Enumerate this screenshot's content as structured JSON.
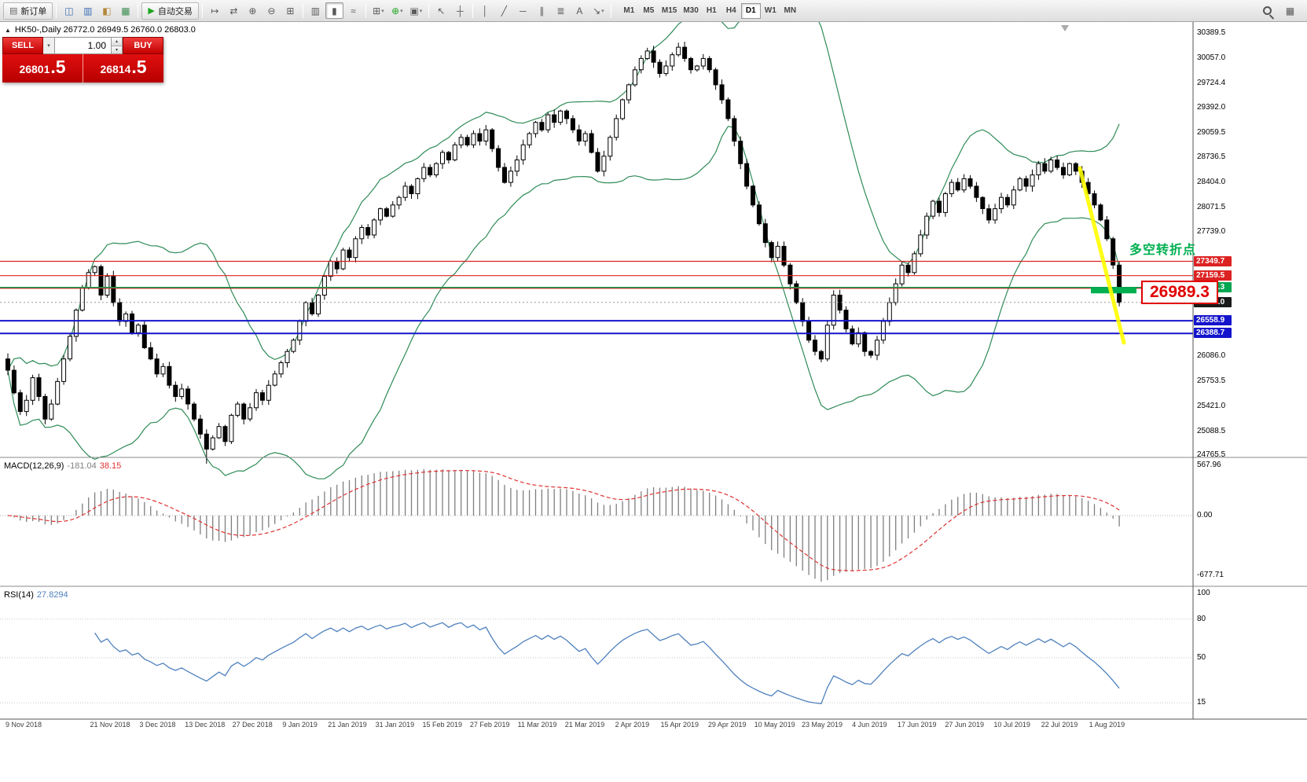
{
  "toolbar": {
    "items": [
      {
        "kind": "button",
        "name": "new-order-button",
        "glyph": "▤",
        "label": "新订单"
      },
      {
        "kind": "sep"
      },
      {
        "kind": "icon",
        "name": "market-watch-icon",
        "glyph": "◫",
        "color": "#3c6eb4"
      },
      {
        "kind": "icon",
        "name": "data-window-icon",
        "glyph": "▥",
        "color": "#3c6eb4"
      },
      {
        "kind": "icon",
        "name": "navigator-icon",
        "glyph": "◧",
        "color": "#b4883c"
      },
      {
        "kind": "icon",
        "name": "terminal-icon",
        "glyph": "▦",
        "color": "#3c8c50"
      },
      {
        "kind": "sep"
      },
      {
        "kind": "button",
        "name": "autotrading-button",
        "glyph": "▶",
        "color": "#1fa51f",
        "label": "自动交易"
      },
      {
        "kind": "sep"
      },
      {
        "kind": "icon",
        "name": "bar-shift-icon",
        "glyph": "↦"
      },
      {
        "kind": "icon",
        "name": "auto-scroll-icon",
        "glyph": "⇄"
      },
      {
        "kind": "icon",
        "name": "zoom-in-icon",
        "glyph": "⊕"
      },
      {
        "kind": "icon",
        "name": "zoom-out-icon",
        "glyph": "⊖"
      },
      {
        "kind": "icon",
        "name": "tile-windows-icon",
        "glyph": "⊞"
      },
      {
        "kind": "sep"
      },
      {
        "kind": "icon",
        "name": "bars-chart-icon",
        "glyph": "▥"
      },
      {
        "kind": "icon",
        "name": "candles-chart-icon",
        "glyph": "▮",
        "active": true
      },
      {
        "kind": "icon",
        "name": "line-chart-icon",
        "glyph": "≈"
      },
      {
        "kind": "sep"
      },
      {
        "kind": "icon",
        "name": "new-chart-icon",
        "glyph": "⊞",
        "caret": true
      },
      {
        "kind": "icon",
        "name": "indicators-icon",
        "glyph": "⊕",
        "color": "#1fa51f",
        "caret": true
      },
      {
        "kind": "icon",
        "name": "chart-template-icon",
        "glyph": "▣",
        "caret": true
      },
      {
        "kind": "sep"
      },
      {
        "kind": "icon",
        "name": "cursor-icon",
        "glyph": "↖"
      },
      {
        "kind": "icon",
        "name": "crosshair-icon",
        "glyph": "┼"
      },
      {
        "kind": "sep"
      },
      {
        "kind": "icon",
        "name": "vertical-line-icon",
        "glyph": "│"
      },
      {
        "kind": "icon",
        "name": "trendline-icon",
        "glyph": "╱"
      },
      {
        "kind": "icon",
        "name": "horizontal-line-icon",
        "glyph": "─"
      },
      {
        "kind": "icon",
        "name": "channel-icon",
        "glyph": "∥"
      },
      {
        "kind": "icon",
        "name": "fibonacci-icon",
        "glyph": "≣"
      },
      {
        "kind": "icon",
        "name": "text-icon",
        "glyph": "A"
      },
      {
        "kind": "icon",
        "name": "arrows-icon",
        "glyph": "↘",
        "caret": true
      },
      {
        "kind": "sep"
      },
      {
        "kind": "tf"
      }
    ],
    "right_icons": [
      {
        "name": "search-icon",
        "mag": true
      },
      {
        "name": "print-icon",
        "glyph": "▦"
      }
    ],
    "timeframes": [
      "M1",
      "M5",
      "M15",
      "M30",
      "H1",
      "H4",
      "D1",
      "W1",
      "MN"
    ],
    "active_timeframe": "D1"
  },
  "symbol_header": {
    "marker": "▲",
    "text": "HK50-,Daily  26772.0 26949.5 26760.0 26803.0"
  },
  "trade_panel": {
    "sell_label": "SELL",
    "buy_label": "BUY",
    "lot_value": "1.00",
    "sell_price_main": "26801",
    "sell_price_pips": ".5",
    "buy_price_main": "26814",
    "buy_price_pips": ".5"
  },
  "annotations": {
    "turning_point": "多空转折点",
    "price_callout": "26989.3"
  },
  "macd": {
    "label": "MACD(12,26,9)",
    "value_main": "-181.04",
    "value_signal": "38.15",
    "scale_labels": [
      "567.96",
      "0.00",
      "-677.71"
    ]
  },
  "rsi": {
    "label": "RSI(14)",
    "value": "27.8294",
    "scale_labels": [
      "100",
      "80",
      "50",
      "15"
    ]
  },
  "chart_data": {
    "type": "candlestick+indicators",
    "symbol": "HK50-",
    "timeframe": "Daily",
    "ohlc_current": {
      "open": 26772.0,
      "high": 26949.5,
      "low": 26760.0,
      "close": 26803.0
    },
    "y_range_main": [
      24760,
      30515
    ],
    "price_axis_ticks": [
      30389.5,
      30057.0,
      29724.4,
      29392.0,
      29059.5,
      28736.5,
      28404.0,
      28071.5,
      27739.0,
      26086.0,
      25753.5,
      25421.0,
      25088.5,
      24765.5
    ],
    "price_badges": [
      {
        "value": 27349.7,
        "color": "#dd2222"
      },
      {
        "value": 27159.5,
        "color": "#dd2222"
      },
      {
        "value": 26999.3,
        "color": "#00a651"
      },
      {
        "value": 26803.0,
        "color": "#1a1a1a"
      },
      {
        "value": 26558.9,
        "color": "#1414cc"
      },
      {
        "value": 26388.7,
        "color": "#1414cc"
      }
    ],
    "levels": [
      {
        "price": 27349.7,
        "color": "#dd2222",
        "width": 1.2
      },
      {
        "price": 27159.5,
        "color": "#dd2222",
        "width": 1.2
      },
      {
        "price": 26999.3,
        "color": "#00a651",
        "width": 2
      },
      {
        "price": 26989.3,
        "color": "#dd2222",
        "width": 1
      },
      {
        "price": 26803.0,
        "color": "#999999",
        "width": 1,
        "dash": "2,3"
      },
      {
        "price": 26558.9,
        "color": "#1414cc",
        "width": 2
      },
      {
        "price": 26388.7,
        "color": "#1414cc",
        "width": 2
      }
    ],
    "green_segment_price": 26960,
    "bollinger": {
      "period": 20,
      "deviation": 2
    },
    "macd_params": {
      "fast": 12,
      "slow": 26,
      "signal": 9
    },
    "rsi_params": {
      "period": 14
    },
    "closes": [
      25900,
      25600,
      25350,
      25500,
      25800,
      25550,
      25250,
      25450,
      25750,
      26050,
      26350,
      26700,
      27000,
      27200,
      27280,
      26900,
      27150,
      26800,
      26550,
      26650,
      26400,
      26500,
      26200,
      26050,
      25850,
      25950,
      25700,
      25550,
      25650,
      25450,
      25250,
      25050,
      24850,
      25000,
      25150,
      24950,
      25300,
      25450,
      25250,
      25400,
      25600,
      25500,
      25700,
      25850,
      26000,
      26150,
      26300,
      26550,
      26800,
      26650,
      26900,
      27150,
      27350,
      27250,
      27500,
      27400,
      27650,
      27800,
      27700,
      27900,
      28050,
      27950,
      28100,
      28200,
      28350,
      28250,
      28450,
      28600,
      28500,
      28650,
      28800,
      28700,
      28900,
      29000,
      28900,
      29050,
      28950,
      29100,
      28850,
      28600,
      28400,
      28550,
      28700,
      28900,
      29050,
      29200,
      29100,
      29300,
      29200,
      29350,
      29250,
      29100,
      28950,
      29050,
      28800,
      28550,
      28750,
      29000,
      29250,
      29500,
      29700,
      29900,
      30050,
      30150,
      30000,
      29850,
      29950,
      30100,
      30200,
      30050,
      29900,
      29950,
      30050,
      29900,
      29700,
      29500,
      29250,
      28950,
      28650,
      28350,
      28100,
      27850,
      27600,
      27400,
      27550,
      27300,
      27050,
      26800,
      26550,
      26300,
      26150,
      26050,
      26500,
      26900,
      26700,
      26450,
      26250,
      26400,
      26150,
      26100,
      26300,
      26550,
      26800,
      27050,
      27300,
      27200,
      27450,
      27700,
      27950,
      28150,
      28000,
      28250,
      28400,
      28300,
      28450,
      28350,
      28200,
      28050,
      27900,
      28050,
      28200,
      28100,
      28300,
      28450,
      28350,
      28500,
      28650,
      28550,
      28700,
      28600,
      28500,
      28650,
      28550,
      28400,
      28250,
      28100,
      27900,
      27650,
      27300,
      26803
    ],
    "dates": [
      "9 Nov 2018",
      "21 Nov 2018",
      "3 Dec 2018",
      "13 Dec 2018",
      "27 Dec 2018",
      "9 Jan 2019",
      "21 Jan 2019",
      "31 Jan 2019",
      "15 Feb 2019",
      "27 Feb 2019",
      "11 Mar 2019",
      "21 Mar 2019",
      "2 Apr 2019",
      "15 Apr 2019",
      "29 Apr 2019",
      "10 May 2019",
      "23 May 2019",
      "4 Jun 2019",
      "17 Jun 2019",
      "27 Jun 2019",
      "10 Jul 2019",
      "22 Jul 2019",
      "1 Aug 2019"
    ]
  }
}
